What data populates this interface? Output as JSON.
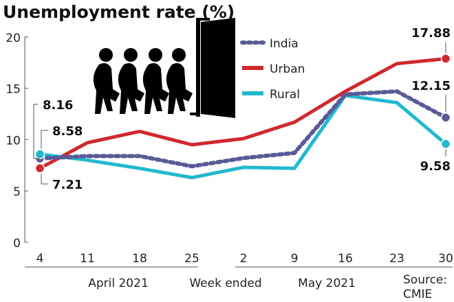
{
  "chart_data": {
    "type": "line",
    "title": "Unemployment rate (%)",
    "xlabel": "Week ended",
    "month_labels": [
      "April 2021",
      "May 2021"
    ],
    "source": "Source: CMIE",
    "categories": [
      "4",
      "11",
      "18",
      "25",
      "2",
      "9",
      "16",
      "23",
      "30"
    ],
    "ylim": [
      0,
      20
    ],
    "yticks": [
      0,
      5,
      10,
      15,
      20
    ],
    "series": [
      {
        "name": "India",
        "color": "#5a5a96",
        "style": "dotted",
        "values": [
          8.16,
          8.4,
          8.4,
          7.4,
          8.2,
          8.7,
          14.4,
          14.7,
          12.15
        ]
      },
      {
        "name": "Urban",
        "color": "#d0282e",
        "style": "solid",
        "values": [
          7.21,
          9.7,
          10.8,
          9.5,
          10.1,
          11.7,
          14.7,
          17.4,
          17.88
        ]
      },
      {
        "name": "Rural",
        "color": "#21b8cf",
        "style": "solid",
        "values": [
          8.58,
          8.0,
          7.2,
          6.3,
          7.3,
          7.2,
          14.3,
          13.6,
          9.58
        ]
      }
    ],
    "annotations": [
      "8.16",
      "8.58",
      "7.21",
      "17.88",
      "12.15",
      "9.58"
    ]
  }
}
